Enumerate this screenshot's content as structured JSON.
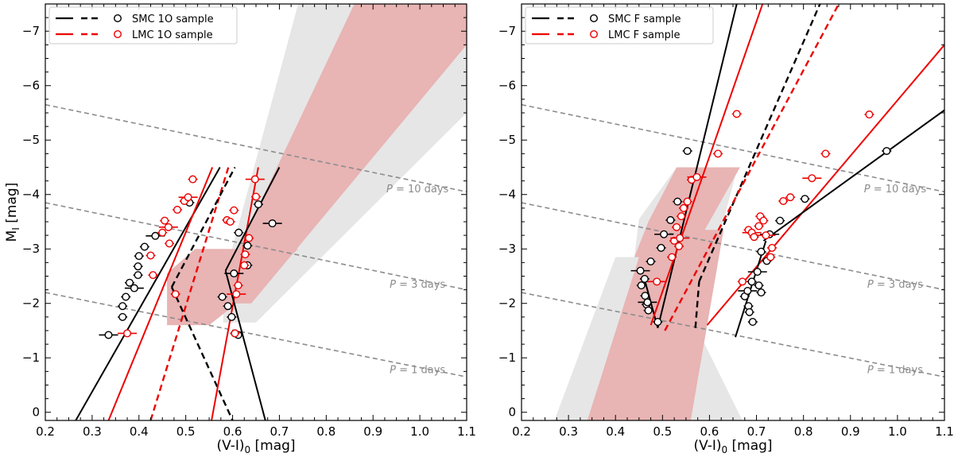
{
  "chart_data": [
    {
      "type": "scatter",
      "panel": "left",
      "xlabel": "(V-I)",
      "xlabel_sub": "0",
      "xlabel_unit": " [mag]",
      "ylabel": "M",
      "ylabel_sub": "I",
      "ylabel_unit": " [mag]",
      "xlim": [
        0.2,
        1.1
      ],
      "ylim": [
        0.15,
        -7.5
      ],
      "xticks": [
        0.2,
        0.3,
        0.4,
        0.5,
        0.6,
        0.7,
        0.8,
        0.9,
        1.0,
        1.1
      ],
      "xtick_labels": [
        "0.2",
        "0.3",
        "0.4",
        "0.5",
        "0.6",
        "0.7",
        "0.8",
        "0.9",
        "1.0",
        "1.1"
      ],
      "yticks": [
        0,
        -1,
        -2,
        -3,
        -4,
        -5,
        -6,
        -7
      ],
      "ytick_labels": [
        "0",
        "−1",
        "−2",
        "−3",
        "−4",
        "−5",
        "−6",
        "−7"
      ],
      "legend": {
        "position": "top-left",
        "entries": [
          {
            "label": "SMC 1O sample",
            "color": "#000000"
          },
          {
            "label": "LMC 1O sample",
            "color": "#ee0000"
          }
        ]
      },
      "period_lines": [
        {
          "label": "P = 1 days",
          "italic": "P",
          "text": " = 1 days",
          "y_left": -2.2,
          "y_right": -0.65,
          "label_x": 0.995,
          "label_y": -0.78
        },
        {
          "label": "P = 3 days",
          "italic": "P",
          "text": " = 3 days",
          "y_left": -3.85,
          "y_right": -2.25,
          "label_x": 0.995,
          "label_y": -2.35
        },
        {
          "label": "P = 10 days",
          "italic": "P",
          "text": " = 10 days",
          "y_left": -5.65,
          "y_right": -4.05,
          "label_x": 0.995,
          "label_y": -4.1
        }
      ],
      "bands": [
        {
          "name": "gray-band",
          "color": "#e6e6e6",
          "points": [
            [
              0.58,
              -2.4
            ],
            [
              0.74,
              -7.5
            ],
            [
              1.1,
              -7.5
            ],
            [
              1.1,
              -5.5
            ],
            [
              0.65,
              -1.65
            ],
            [
              0.58,
              -1.65
            ]
          ]
        },
        {
          "name": "red-band-upper",
          "color": "#e8b4b4",
          "points": [
            [
              0.59,
              -2.6
            ],
            [
              0.86,
              -7.5
            ],
            [
              1.1,
              -7.5
            ],
            [
              1.1,
              -6.75
            ],
            [
              0.64,
              -2.0
            ],
            [
              0.59,
              -2.0
            ]
          ]
        },
        {
          "name": "red-band-lower",
          "color": "#e8b4b4",
          "points": [
            [
              0.46,
              -1.6
            ],
            [
              0.46,
              -2.55
            ],
            [
              0.52,
              -3.0
            ],
            [
              0.74,
              -3.0
            ],
            [
              0.66,
              -2.35
            ],
            [
              0.55,
              -1.6
            ]
          ]
        }
      ],
      "fit_lines": [
        {
          "name": "smc-left-fit",
          "color": "#000000",
          "dash": false,
          "points": [
            [
              0.265,
              0.15
            ],
            [
              0.573,
              -4.5
            ]
          ]
        },
        {
          "name": "lmc-left-fit",
          "color": "#ee0000",
          "dash": false,
          "points": [
            [
              0.335,
              0.15
            ],
            [
              0.557,
              -4.5
            ]
          ]
        },
        {
          "name": "lmc-left-dashed",
          "color": "#ee0000",
          "dash": true,
          "points": [
            [
              0.425,
              0.15
            ],
            [
              0.591,
              -4.5
            ]
          ]
        },
        {
          "name": "smc-left-dashed",
          "color": "#000000",
          "dash": true,
          "points": [
            [
              0.47,
              -2.3
            ],
            [
              0.605,
              -4.5
            ]
          ]
        },
        {
          "name": "smc-mid-dashed",
          "color": "#000000",
          "dash": true,
          "points": [
            [
              0.47,
              -2.3
            ],
            [
              0.6,
              0.15
            ]
          ]
        },
        {
          "name": "lmc-right-fit",
          "color": "#ee0000",
          "dash": false,
          "points": [
            [
              0.555,
              0.15
            ],
            [
              0.655,
              -4.5
            ]
          ]
        },
        {
          "name": "smc-right-fit",
          "color": "#000000",
          "dash": false,
          "points": [
            [
              0.585,
              -2.6
            ],
            [
              0.7,
              -4.5
            ]
          ]
        },
        {
          "name": "smc-right-lower",
          "color": "#000000",
          "dash": false,
          "points": [
            [
              0.585,
              -2.6
            ],
            [
              0.67,
              0.15
            ]
          ]
        }
      ],
      "series": [
        {
          "name": "SMC 1O sample",
          "color": "#000000",
          "points": [
            [
              0.335,
              -1.42
            ],
            [
              0.365,
              -1.75
            ],
            [
              0.365,
              -1.95
            ],
            [
              0.372,
              -2.12
            ],
            [
              0.38,
              -2.38
            ],
            [
              0.39,
              -2.28
            ],
            [
              0.398,
              -2.52
            ],
            [
              0.398,
              -2.68
            ],
            [
              0.4,
              -2.87
            ],
            [
              0.412,
              -3.04
            ],
            [
              0.435,
              -3.24
            ],
            [
              0.508,
              -3.85
            ],
            [
              0.578,
              -2.12
            ],
            [
              0.59,
              -1.95
            ],
            [
              0.598,
              -1.75
            ],
            [
              0.603,
              -2.55
            ],
            [
              0.613,
              -3.3
            ],
            [
              0.632,
              -2.7
            ],
            [
              0.632,
              -3.06
            ],
            [
              0.655,
              -3.82
            ],
            [
              0.685,
              -3.47
            ],
            [
              0.605,
              -1.45
            ],
            [
              0.612,
              -1.42
            ]
          ]
        },
        {
          "name": "LMC 1O sample",
          "color": "#ee0000",
          "points": [
            [
              0.375,
              -1.45
            ],
            [
              0.425,
              -2.88
            ],
            [
              0.43,
              -2.52
            ],
            [
              0.45,
              -3.3
            ],
            [
              0.455,
              -3.52
            ],
            [
              0.463,
              -3.4
            ],
            [
              0.465,
              -3.1
            ],
            [
              0.478,
              -2.17
            ],
            [
              0.482,
              -3.72
            ],
            [
              0.497,
              -3.88
            ],
            [
              0.505,
              -3.95
            ],
            [
              0.515,
              -4.28
            ],
            [
              0.588,
              -3.53
            ],
            [
              0.595,
              -3.5
            ],
            [
              0.603,
              -3.71
            ],
            [
              0.608,
              -2.17
            ],
            [
              0.612,
              -2.33
            ],
            [
              0.625,
              -2.7
            ],
            [
              0.627,
              -2.9
            ],
            [
              0.635,
              -3.2
            ],
            [
              0.648,
              -4.28
            ],
            [
              0.65,
              -3.96
            ],
            [
              0.605,
              -1.45
            ]
          ]
        }
      ]
    },
    {
      "type": "scatter",
      "panel": "right",
      "xlabel": "(V-I)",
      "xlabel_sub": "0",
      "xlabel_unit": " [mag]",
      "ylabel": "",
      "xlim": [
        0.2,
        1.1
      ],
      "ylim": [
        0.15,
        -7.5
      ],
      "xticks": [
        0.2,
        0.3,
        0.4,
        0.5,
        0.6,
        0.7,
        0.8,
        0.9,
        1.0,
        1.1
      ],
      "xtick_labels": [
        "0.2",
        "0.3",
        "0.4",
        "0.5",
        "0.6",
        "0.7",
        "0.8",
        "0.9",
        "1.0",
        "1.1"
      ],
      "yticks": [
        0,
        -1,
        -2,
        -3,
        -4,
        -5,
        -6,
        -7
      ],
      "ytick_labels": [
        "0",
        "−1",
        "−2",
        "−3",
        "−4",
        "−5",
        "−6",
        "−7"
      ],
      "legend": {
        "position": "top-left",
        "entries": [
          {
            "label": "SMC F sample",
            "color": "#000000"
          },
          {
            "label": "LMC F sample",
            "color": "#ee0000"
          }
        ]
      },
      "period_lines": [
        {
          "label": "P = 1 days",
          "italic": "P",
          "text": " = 1 days",
          "y_left": -2.2,
          "y_right": -0.65,
          "label_x": 0.995,
          "label_y": -0.78
        },
        {
          "label": "P = 3 days",
          "italic": "P",
          "text": " = 3 days",
          "y_left": -3.85,
          "y_right": -2.25,
          "label_x": 0.995,
          "label_y": -2.35
        },
        {
          "label": "P = 10 days",
          "italic": "P",
          "text": " = 10 days",
          "y_left": -5.65,
          "y_right": -4.05,
          "label_x": 0.995,
          "label_y": -4.1
        }
      ],
      "bands": [
        {
          "name": "gray-band",
          "color": "#e6e6e6",
          "points": [
            [
              0.27,
              0.15
            ],
            [
              0.4,
              -2.85
            ],
            [
              0.44,
              -2.85
            ],
            [
              0.45,
              -3.55
            ],
            [
              0.53,
              -4.5
            ],
            [
              0.66,
              -4.5
            ],
            [
              0.57,
              -1.6
            ],
            [
              0.67,
              0.15
            ]
          ]
        },
        {
          "name": "red-band",
          "color": "#e8b4b4",
          "points": [
            [
              0.34,
              0.15
            ],
            [
              0.45,
              -2.85
            ],
            [
              0.44,
              -2.85
            ],
            [
              0.47,
              -3.5
            ],
            [
              0.53,
              -4.5
            ],
            [
              0.665,
              -4.5
            ],
            [
              0.59,
              -3.35
            ],
            [
              0.63,
              -3.35
            ],
            [
              0.56,
              0.15
            ]
          ]
        }
      ],
      "fit_lines": [
        {
          "name": "smc-steep-fit",
          "color": "#000000",
          "dash": false,
          "points": [
            [
              0.49,
              -1.55
            ],
            [
              0.658,
              -7.5
            ]
          ]
        },
        {
          "name": "smc-steep-lower",
          "color": "#000000",
          "dash": false,
          "points": [
            [
              0.463,
              -2.4
            ],
            [
              0.49,
              -1.55
            ]
          ]
        },
        {
          "name": "lmc-steep-fit",
          "color": "#ee0000",
          "dash": false,
          "points": [
            [
              0.475,
              -1.6
            ],
            [
              0.713,
              -7.5
            ]
          ]
        },
        {
          "name": "smc-dashed-fit",
          "color": "#000000",
          "dash": true,
          "points": [
            [
              0.578,
              -2.4
            ],
            [
              0.835,
              -7.5
            ]
          ]
        },
        {
          "name": "smc-dashed-lower",
          "color": "#000000",
          "dash": true,
          "points": [
            [
              0.57,
              -1.55
            ],
            [
              0.578,
              -2.4
            ]
          ]
        },
        {
          "name": "lmc-dashed-fit",
          "color": "#ee0000",
          "dash": true,
          "points": [
            [
              0.505,
              -1.5
            ],
            [
              0.875,
              -7.5
            ]
          ]
        },
        {
          "name": "lmc-shallow-fit",
          "color": "#ee0000",
          "dash": false,
          "points": [
            [
              0.595,
              -1.6
            ],
            [
              1.1,
              -6.75
            ]
          ]
        },
        {
          "name": "smc-shallow-fit",
          "color": "#000000",
          "dash": false,
          "points": [
            [
              0.715,
              -3.15
            ],
            [
              1.1,
              -5.55
            ]
          ]
        },
        {
          "name": "smc-shallow-lower",
          "color": "#000000",
          "dash": false,
          "points": [
            [
              0.655,
              -1.38
            ],
            [
              0.72,
              -3.15
            ]
          ]
        }
      ],
      "series": [
        {
          "name": "SMC F sample",
          "color": "#000000",
          "points": [
            [
              0.453,
              -2.6
            ],
            [
              0.455,
              -2.33
            ],
            [
              0.462,
              -2.45
            ],
            [
              0.463,
              -2.14
            ],
            [
              0.466,
              -1.98
            ],
            [
              0.468,
              -2.02
            ],
            [
              0.47,
              -1.87
            ],
            [
              0.475,
              -2.77
            ],
            [
              0.49,
              -1.66
            ],
            [
              0.497,
              -3.02
            ],
            [
              0.503,
              -3.27
            ],
            [
              0.517,
              -3.53
            ],
            [
              0.532,
              -3.87
            ],
            [
              0.553,
              -4.8
            ],
            [
              0.675,
              -2.13
            ],
            [
              0.681,
              -2.23
            ],
            [
              0.683,
              -1.95
            ],
            [
              0.685,
              -1.84
            ],
            [
              0.69,
              -2.4
            ],
            [
              0.692,
              -1.66
            ],
            [
              0.702,
              -2.58
            ],
            [
              0.705,
              -2.33
            ],
            [
              0.71,
              -2.2
            ],
            [
              0.71,
              -2.95
            ],
            [
              0.722,
              -2.78
            ],
            [
              0.728,
              -3.27
            ],
            [
              0.75,
              -3.52
            ],
            [
              0.803,
              -3.92
            ],
            [
              0.977,
              -4.8
            ]
          ]
        },
        {
          "name": "LMC F sample",
          "color": "#ee0000",
          "points": [
            [
              0.488,
              -2.4
            ],
            [
              0.52,
              -2.85
            ],
            [
              0.525,
              -3.15
            ],
            [
              0.53,
              -3.4
            ],
            [
              0.535,
              -3.05
            ],
            [
              0.537,
              -3.2
            ],
            [
              0.54,
              -3.6
            ],
            [
              0.545,
              -3.75
            ],
            [
              0.553,
              -3.87
            ],
            [
              0.562,
              -4.27
            ],
            [
              0.573,
              -4.32
            ],
            [
              0.618,
              -4.75
            ],
            [
              0.658,
              -5.48
            ],
            [
              0.67,
              -2.4
            ],
            [
              0.683,
              -3.35
            ],
            [
              0.69,
              -3.3
            ],
            [
              0.695,
              -3.22
            ],
            [
              0.705,
              -3.42
            ],
            [
              0.708,
              -3.6
            ],
            [
              0.715,
              -3.52
            ],
            [
              0.72,
              -3.25
            ],
            [
              0.733,
              -3.02
            ],
            [
              0.73,
              -2.85
            ],
            [
              0.757,
              -3.88
            ],
            [
              0.772,
              -3.95
            ],
            [
              0.818,
              -4.3
            ],
            [
              0.847,
              -4.75
            ],
            [
              0.94,
              -5.47
            ]
          ]
        }
      ]
    }
  ]
}
